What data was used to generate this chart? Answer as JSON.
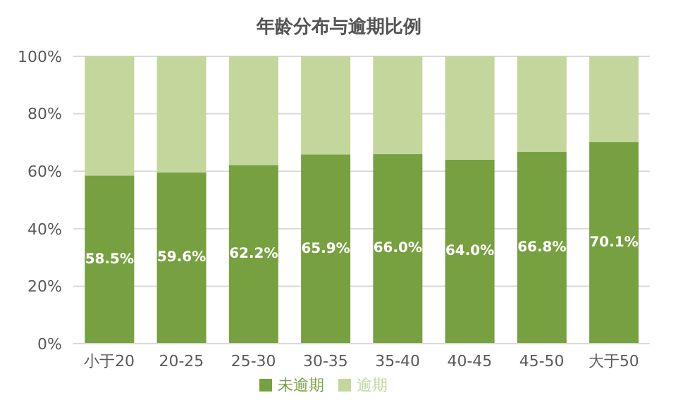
{
  "chart_data": {
    "type": "bar",
    "title": "年龄分布与逾期比例",
    "stacked": true,
    "categories": [
      "小于20",
      "20-25",
      "25-30",
      "30-35",
      "35-40",
      "40-45",
      "45-50",
      "大于50"
    ],
    "series": [
      {
        "name": "未逾期",
        "color": "#77a040",
        "values": [
          58.5,
          59.6,
          62.2,
          65.9,
          66.0,
          64.0,
          66.8,
          70.1
        ],
        "value_labels": [
          "58.5%",
          "59.6%",
          "62.2%",
          "65.9%",
          "66.0%",
          "64.0%",
          "66.8%",
          "70.1%"
        ]
      },
      {
        "name": "逾期",
        "color": "#c3d69b",
        "values": [
          41.5,
          40.4,
          37.8,
          34.1,
          34.0,
          36.0,
          33.2,
          29.9
        ]
      }
    ],
    "ylim": [
      0,
      100
    ],
    "yticks": [
      {
        "value": 0,
        "label": "0%"
      },
      {
        "value": 20,
        "label": "20%"
      },
      {
        "value": 40,
        "label": "40%"
      },
      {
        "value": 60,
        "label": "60%"
      },
      {
        "value": 80,
        "label": "80%"
      },
      {
        "value": 100,
        "label": "100%"
      }
    ],
    "grid": "y",
    "legend": "bottom"
  }
}
